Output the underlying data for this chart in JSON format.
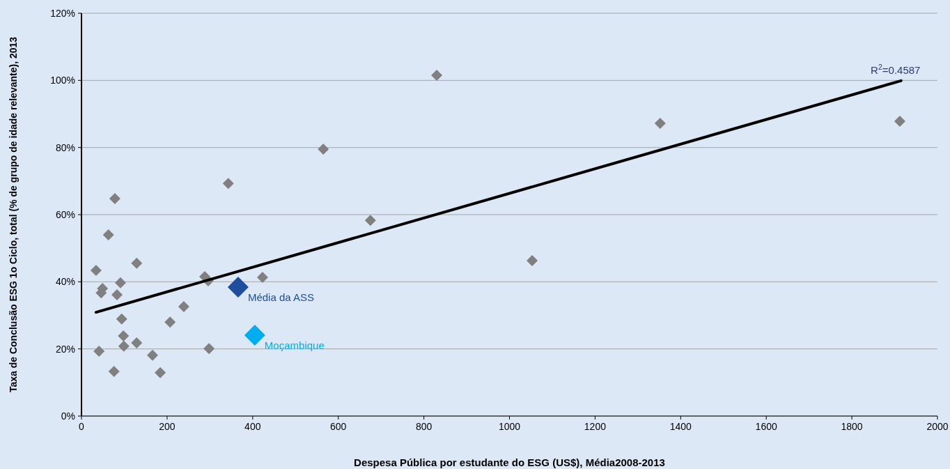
{
  "chart_data": {
    "type": "scatter",
    "xlabel": "Despesa Pública por estudante do ESG (US$), Média2008-2013",
    "ylabel": "Taxa de Conclusão ESG 1o Ciclo, total (% de grupo de idade relevante), 2013",
    "xlim": [
      0,
      2000
    ],
    "xticks": [
      0,
      200,
      400,
      600,
      800,
      1000,
      1200,
      1400,
      1600,
      1800,
      2000
    ],
    "ylim": [
      0,
      120
    ],
    "yticks": [
      {
        "value": 0,
        "label": "0%"
      },
      {
        "value": 20,
        "label": "20%"
      },
      {
        "value": 40,
        "label": "40%"
      },
      {
        "value": 60,
        "label": "60%"
      },
      {
        "value": 80,
        "label": "80%"
      },
      {
        "value": 100,
        "label": "100%"
      },
      {
        "value": 120,
        "label": "120%"
      }
    ],
    "grid": "y",
    "marker": "diamond",
    "series": [
      {
        "color": "#808080",
        "x": [
          34,
          41,
          46,
          49,
          63,
          76,
          78,
          83,
          91,
          94,
          98,
          99,
          129,
          129,
          166,
          184,
          207,
          239,
          288,
          296,
          298,
          343,
          423,
          565,
          675,
          830,
          1053,
          1352,
          1912
        ],
        "values": [
          43.4,
          19.3,
          36.7,
          38.0,
          54.0,
          13.3,
          64.8,
          36.1,
          39.7,
          28.9,
          23.9,
          20.8,
          45.5,
          21.8,
          18.1,
          12.9,
          28.0,
          32.6,
          41.5,
          40.3,
          20.1,
          69.3,
          41.3,
          79.5,
          58.3,
          101.5,
          46.3,
          87.2,
          87.8
        ]
      },
      {
        "name": "Média da ASS",
        "color": "#1f4e9f",
        "x": [
          366
        ],
        "values": [
          38.4
        ]
      },
      {
        "name": "Moçambique",
        "color": "#00aeef",
        "x": [
          405
        ],
        "values": [
          24.1
        ]
      },
      {
        "type": "line",
        "marker": "none",
        "color": "#000000",
        "x": [
          34,
          1915
        ],
        "values": [
          30.9,
          99.9
        ]
      }
    ],
    "annotations": [
      {
        "text": "R$^{2}$=0.4587",
        "x": 1915,
        "y": 99.9
      }
    ]
  }
}
